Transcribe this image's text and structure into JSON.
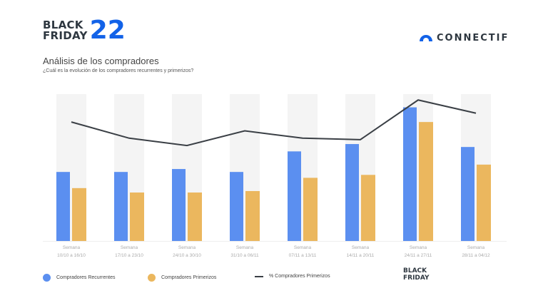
{
  "header": {
    "logo_line1": "BLACK",
    "logo_line2": "FRIDAY",
    "logo_number": "22",
    "brand": "CONNECTIF"
  },
  "chart_data": {
    "type": "bar",
    "title": "Análisis de los compradores",
    "subtitle": "¿Cuál es la evolución de los compradores recurrentes y primerizos?",
    "categories": [
      [
        "Semana",
        "10/10 a 16/10"
      ],
      [
        "Semana",
        "17/10 a 23/10"
      ],
      [
        "Semana",
        "24/10 a 30/10"
      ],
      [
        "Semana",
        "31/10 a 06/11"
      ],
      [
        "Semana",
        "07/11 a 13/11"
      ],
      [
        "Semana",
        "14/11 a 20/11"
      ],
      [
        "Semana",
        "24/11 a 27/11"
      ],
      [
        "Semana",
        "28/11 a 04/12"
      ]
    ],
    "ylim": [
      0,
      100
    ],
    "grid": false,
    "legend_position": "bottom",
    "series": [
      {
        "name": "Compradores Recurrentes",
        "kind": "bar",
        "color": "#5b8ff0",
        "values": [
          47,
          47,
          49,
          47,
          61,
          66,
          91,
          64
        ]
      },
      {
        "name": "Compradores Primerizos",
        "kind": "bar",
        "color": "#ebb75e",
        "values": [
          36,
          33,
          33,
          34,
          43,
          45,
          81,
          52
        ]
      },
      {
        "name": "% Compradores Primerizos",
        "kind": "line",
        "color": "#3a3f45",
        "values": [
          81,
          70,
          65,
          75,
          70,
          69,
          96,
          87
        ]
      }
    ],
    "highlight_label_line1": "BLACK",
    "highlight_label_line2": "FRIDAY"
  }
}
